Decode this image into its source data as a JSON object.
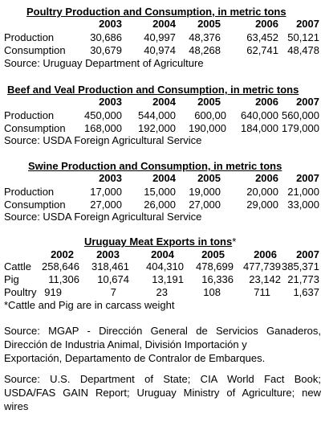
{
  "poultry": {
    "title": "Poultry Production and Consumption, in metric tons",
    "years": [
      "2003",
      "2004",
      "2005",
      "2006",
      "2007"
    ],
    "rows": [
      {
        "label": "Production",
        "values": [
          "30,686",
          "40,997",
          "48,376",
          "63,452",
          "50,121"
        ]
      },
      {
        "label": "Consumption",
        "values": [
          "30,679",
          "40,974",
          "48,268",
          "62,741",
          "48,478"
        ]
      }
    ],
    "source": "Source:  Uruguay Department of Agriculture"
  },
  "beef": {
    "title": "Beef and Veal Production and Consumption, in metric tons",
    "years": [
      "2003",
      "2004",
      "2005",
      "2006",
      "2007"
    ],
    "rows": [
      {
        "label": "Production",
        "values": [
          "450,000",
          "544,000",
          "600,00",
          "640,000",
          "560,000"
        ]
      },
      {
        "label": "Consumption",
        "values": [
          "168,000",
          "192,000",
          "190,000",
          "184,000",
          "179,000"
        ]
      }
    ],
    "source": "Source:  USDA Foreign Agricultural Service"
  },
  "swine": {
    "title": "Swine Production and Consumption, in metric tons",
    "years": [
      "2003",
      "2004",
      "2005",
      "2006",
      "2007"
    ],
    "rows": [
      {
        "label": "Production",
        "values": [
          "17,000",
          "15,000",
          "19,000",
          "20,000",
          "21,000"
        ]
      },
      {
        "label": "Consumption",
        "values": [
          "27,000",
          "26,000",
          "27,000",
          "29,000",
          "33,000"
        ]
      }
    ],
    "source": "Source:  USDA Foreign Agricultural Service"
  },
  "exports": {
    "title": "Uruguay Meat Exports in tons",
    "title_mark": "*",
    "years": [
      "2002",
      "2003",
      "2004",
      "2005",
      "2006",
      "2007"
    ],
    "rows": [
      {
        "label": "Cattle",
        "values": [
          "258,646",
          "318,461",
          "404,310",
          "478,699",
          "477,739",
          "385,371"
        ]
      },
      {
        "label": "Pig",
        "values": [
          "11,306",
          "10,674",
          "13,191",
          "16,336",
          "23,142",
          "21,773"
        ]
      },
      {
        "label": "Poultry",
        "values": [
          "919",
          "7",
          "23",
          "108",
          "711",
          "1,637"
        ]
      }
    ],
    "footnote": "*Cattle and Pig are in carcass weight"
  },
  "source_mgap": {
    "lines": [
      "Source:  MGAP - Dirección General de Servicios Ganaderos,",
      "Dirección de Industria Animal, División Importación y",
      "Exportación, Departamento de Contralor de Embarques."
    ]
  },
  "source_state": {
    "lines": [
      "Source: U.S. Department of State; CIA World Fact Book;",
      "USDA/FAS GAIN Report; Uruguay Ministry of Agriculture; new",
      "wires"
    ]
  }
}
